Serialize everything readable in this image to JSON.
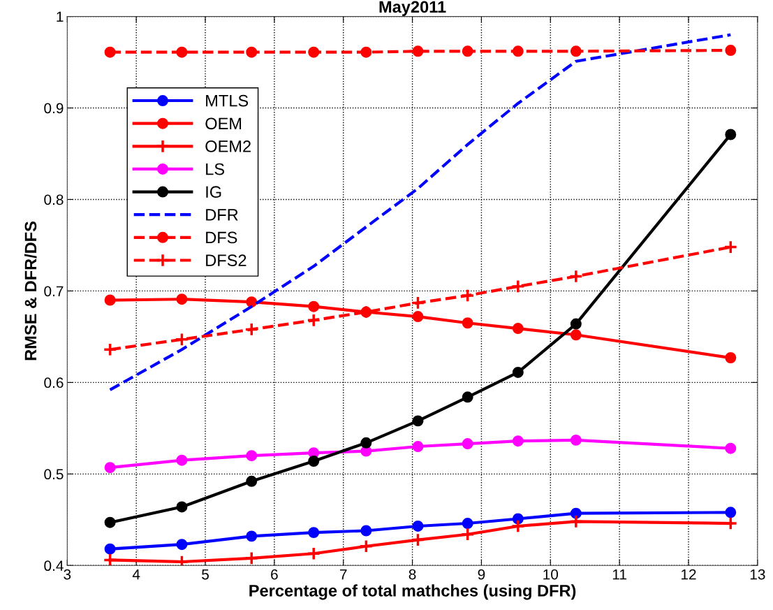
{
  "chart_data": {
    "type": "line",
    "title": "May2011",
    "xlabel": "Percentage of total mathches (using DFR)",
    "ylabel": "RMSE & DFR/DFS",
    "x": [
      3.62,
      4.66,
      5.67,
      6.57,
      7.33,
      8.08,
      8.8,
      9.53,
      10.37,
      12.61
    ],
    "series": [
      {
        "name": "MTLS",
        "color": "#0000ff",
        "marker": "circle",
        "line_style": "solid",
        "values": [
          0.418,
          0.423,
          0.432,
          0.436,
          0.438,
          0.443,
          0.446,
          0.451,
          0.457,
          0.458
        ]
      },
      {
        "name": "OEM",
        "color": "#ff0000",
        "marker": "circle",
        "line_style": "solid",
        "values": [
          0.69,
          0.691,
          0.688,
          0.683,
          0.677,
          0.672,
          0.665,
          0.659,
          0.652,
          0.627
        ]
      },
      {
        "name": "OEM2",
        "color": "#ff0000",
        "marker": "cross",
        "line_style": "solid",
        "values": [
          0.406,
          0.404,
          0.408,
          0.413,
          0.421,
          0.428,
          0.434,
          0.443,
          0.448,
          0.446
        ]
      },
      {
        "name": "LS",
        "color": "#ff00ff",
        "marker": "circle",
        "line_style": "solid",
        "values": [
          0.507,
          0.515,
          0.52,
          0.523,
          0.525,
          0.53,
          0.533,
          0.536,
          0.537,
          0.528
        ]
      },
      {
        "name": "IG",
        "color": "#000000",
        "marker": "circle",
        "line_style": "solid",
        "values": [
          0.447,
          0.464,
          0.492,
          0.514,
          0.534,
          0.558,
          0.584,
          0.611,
          0.664,
          0.871
        ]
      },
      {
        "name": "DFR",
        "color": "#0000ff",
        "marker": "none",
        "line_style": "dashed",
        "values": [
          0.592,
          0.636,
          0.683,
          0.727,
          0.77,
          0.812,
          0.86,
          0.905,
          0.951,
          0.98
        ]
      },
      {
        "name": "DFS",
        "color": "#ff0000",
        "marker": "circle",
        "line_style": "dashed",
        "values": [
          0.961,
          0.961,
          0.961,
          0.961,
          0.961,
          0.962,
          0.962,
          0.962,
          0.962,
          0.963
        ]
      },
      {
        "name": "DFS2",
        "color": "#ff0000",
        "marker": "cross",
        "line_style": "dashed",
        "values": [
          0.636,
          0.647,
          0.658,
          0.668,
          0.677,
          0.687,
          0.695,
          0.705,
          0.716,
          0.748
        ]
      }
    ],
    "xlim": [
      3,
      13
    ],
    "xticks": [
      3,
      4,
      5,
      6,
      7,
      8,
      9,
      10,
      11,
      12,
      13
    ],
    "ylim": [
      0.4,
      1
    ],
    "yticks": [
      0.4,
      0.5,
      0.6,
      0.7,
      0.8,
      0.9,
      1
    ],
    "grid": true,
    "legend": "top left"
  }
}
